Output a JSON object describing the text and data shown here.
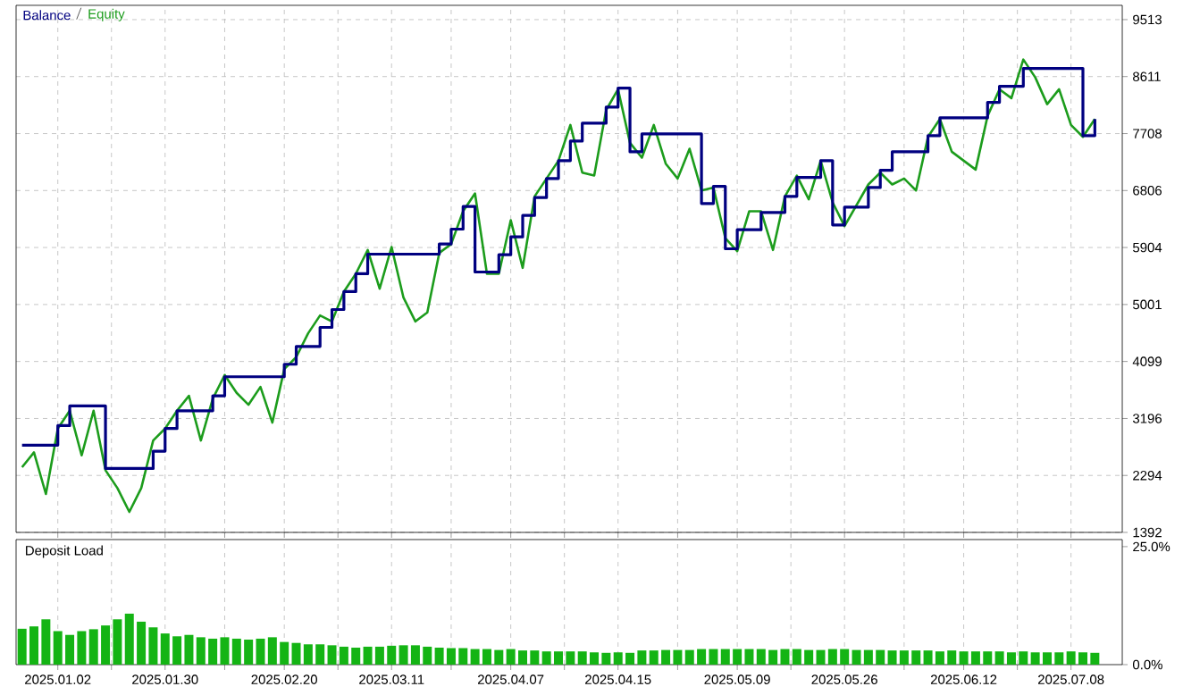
{
  "chart_data": [
    {
      "type": "line",
      "legend": "top left",
      "grid": true,
      "tick_labels": "y",
      "ylim": [
        1392,
        9739
      ],
      "yticks": [
        1392,
        2294,
        3196,
        4099,
        5001,
        5904,
        6806,
        7708,
        8611,
        9513
      ],
      "categories": [
        null,
        null,
        null,
        "2025.01.02",
        null,
        null,
        null,
        null,
        null,
        null,
        null,
        null,
        "2025.01.30",
        null,
        null,
        null,
        null,
        null,
        null,
        null,
        null,
        null,
        "2025.02.20",
        null,
        null,
        null,
        null,
        null,
        null,
        null,
        null,
        "2025.03.11",
        null,
        null,
        null,
        null,
        null,
        null,
        null,
        null,
        null,
        "2025.04.07",
        null,
        null,
        null,
        null,
        null,
        null,
        null,
        null,
        "2025.04.15",
        null,
        null,
        null,
        null,
        null,
        null,
        null,
        null,
        null,
        "2025.05.09",
        null,
        null,
        null,
        null,
        null,
        null,
        null,
        null,
        "2025.05.26",
        null,
        null,
        null,
        null,
        null,
        null,
        null,
        null,
        null,
        "2025.06.12",
        null,
        null,
        null,
        null,
        null,
        null,
        null,
        null,
        "2025.07.08",
        null,
        null
      ],
      "series": [
        {
          "name": "Balance",
          "type": "step",
          "color": "#000080",
          "values": [
            2773,
            2773,
            2773,
            3084,
            3395,
            3395,
            3395,
            2405,
            2405,
            2405,
            2405,
            2678,
            3037,
            3319,
            3319,
            3319,
            3555,
            3857,
            3857,
            3857,
            3857,
            3857,
            4055,
            4337,
            4337,
            4639,
            4922,
            5205,
            5488,
            5799,
            5799,
            5799,
            5799,
            5799,
            5799,
            5959,
            6195,
            6553,
            5516,
            5516,
            5789,
            6072,
            6411,
            6694,
            6996,
            7279,
            7590,
            7873,
            7873,
            8127,
            8429,
            7420,
            7703,
            7703,
            7703,
            7703,
            7703,
            6600,
            6873,
            5884,
            6185,
            6185,
            6459,
            6459,
            6713,
            7015,
            7015,
            7279,
            6261,
            6543,
            6543,
            6854,
            7128,
            7420,
            7420,
            7420,
            7675,
            7957,
            7957,
            7957,
            7957,
            8203,
            8457,
            8457,
            8740,
            8740,
            8740,
            8740,
            8740,
            7675,
            7939
          ]
        },
        {
          "name": "Equity",
          "color": "#1c9c1c",
          "values": [
            2424,
            2659,
            2000,
            3037,
            3319,
            2612,
            3319,
            2377,
            2094,
            1717,
            2094,
            2848,
            3037,
            3319,
            3555,
            2848,
            3508,
            3885,
            3602,
            3414,
            3696,
            3131,
            3979,
            4168,
            4545,
            4828,
            4733,
            5205,
            5488,
            5865,
            5252,
            5912,
            5110,
            4733,
            4875,
            5818,
            5959,
            6477,
            6760,
            5488,
            5488,
            6336,
            5582,
            6713,
            6996,
            7279,
            7844,
            7090,
            7043,
            8080,
            8410,
            7562,
            7326,
            7844,
            7232,
            6996,
            7467,
            6807,
            6854,
            6053,
            5846,
            6477,
            6477,
            5865,
            6713,
            7043,
            6666,
            7279,
            6619,
            6242,
            6572,
            6902,
            7090,
            6902,
            6996,
            6807,
            7656,
            7939,
            7420,
            7279,
            7137,
            7986,
            8410,
            8269,
            8881,
            8598,
            8174,
            8410,
            7844,
            7656,
            7939
          ]
        }
      ]
    },
    {
      "type": "bar",
      "title": "Deposit Load",
      "grid": "x",
      "color": "#14b414",
      "ylim": [
        0,
        26.5
      ],
      "yticks": [
        {
          "value": 0,
          "label": "0.0%"
        },
        {
          "value": 25,
          "label": "25.0%"
        }
      ],
      "categories": [
        null,
        null,
        null,
        "2025.01.02",
        null,
        null,
        null,
        null,
        null,
        null,
        null,
        null,
        "2025.01.30",
        null,
        null,
        null,
        null,
        null,
        null,
        null,
        null,
        null,
        "2025.02.20",
        null,
        null,
        null,
        null,
        null,
        null,
        null,
        null,
        "2025.03.11",
        null,
        null,
        null,
        null,
        null,
        null,
        null,
        null,
        null,
        "2025.04.07",
        null,
        null,
        null,
        null,
        null,
        null,
        null,
        null,
        "2025.04.15",
        null,
        null,
        null,
        null,
        null,
        null,
        null,
        null,
        null,
        "2025.05.09",
        null,
        null,
        null,
        null,
        null,
        null,
        null,
        null,
        "2025.05.26",
        null,
        null,
        null,
        null,
        null,
        null,
        null,
        null,
        null,
        "2025.06.12",
        null,
        null,
        null,
        null,
        null,
        null,
        null,
        null,
        "2025.07.08",
        null,
        null
      ],
      "values": [
        7.6,
        8.1,
        9.6,
        7.1,
        6.3,
        7.1,
        7.5,
        8.3,
        9.6,
        10.8,
        9.1,
        7.9,
        6.6,
        6.0,
        6.3,
        5.8,
        5.5,
        5.8,
        5.5,
        5.3,
        5.5,
        5.8,
        4.8,
        4.6,
        4.3,
        4.3,
        4.1,
        3.8,
        3.6,
        3.8,
        3.8,
        4.0,
        4.1,
        4.1,
        3.8,
        3.6,
        3.5,
        3.5,
        3.3,
        3.3,
        3.1,
        3.3,
        3.0,
        3.0,
        2.8,
        2.8,
        2.8,
        2.8,
        2.6,
        2.5,
        2.6,
        2.5,
        3.0,
        3.0,
        3.1,
        3.1,
        3.1,
        3.3,
        3.3,
        3.3,
        3.3,
        3.3,
        3.3,
        3.1,
        3.3,
        3.3,
        3.1,
        3.1,
        3.3,
        3.3,
        3.1,
        3.1,
        3.1,
        3.0,
        3.0,
        3.0,
        3.0,
        2.8,
        3.0,
        2.8,
        2.8,
        2.8,
        2.8,
        2.6,
        2.8,
        2.6,
        2.6,
        2.6,
        2.8,
        2.6,
        2.5
      ]
    }
  ]
}
